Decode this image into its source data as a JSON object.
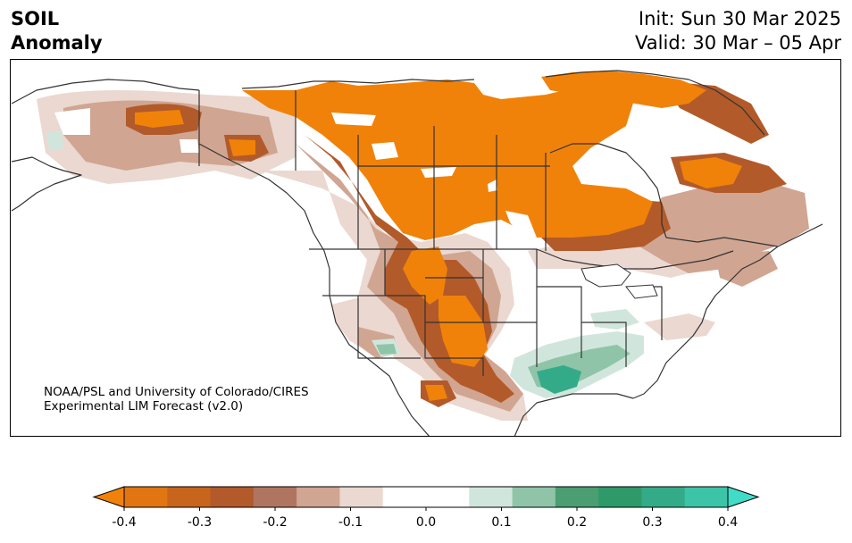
{
  "title": {
    "line1": "SOIL",
    "line2": "Anomaly"
  },
  "init_label": "Init: Sun 30 Mar 2025",
  "valid_label": "Valid: 30 Mar – 05 Apr",
  "credit": {
    "line1": "NOAA/PSL and University of Colorado/CIRES",
    "line2": "Experimental LIM Forecast (v2.0)"
  },
  "colorbar": {
    "min": -0.4,
    "max": 0.4,
    "extend": "both",
    "colors": [
      "#f0820a",
      "#e07512",
      "#c8651d",
      "#b25a2a",
      "#b07560",
      "#d0a592",
      "#ebd8d0",
      "#ffffff",
      "#ffffff",
      "#d0e6dc",
      "#8fc4a8",
      "#4a9e72",
      "#2e9a6a",
      "#34ab88",
      "#3cc4a8",
      "#40dcc8"
    ],
    "tick_labels": [
      "-0.4",
      "-0.3",
      "-0.2",
      "-0.1",
      "0.0",
      "0.1",
      "0.2",
      "0.3",
      "0.4"
    ]
  },
  "colors": {
    "dry_strong": "#f0820a",
    "dry_mid": "#b25a2a",
    "dry_weak": "#d0a592",
    "wet_weak": "#d0e6dc",
    "wet_mid": "#4a9e72",
    "wet_strong": "#34ab88",
    "border": "#333333"
  }
}
